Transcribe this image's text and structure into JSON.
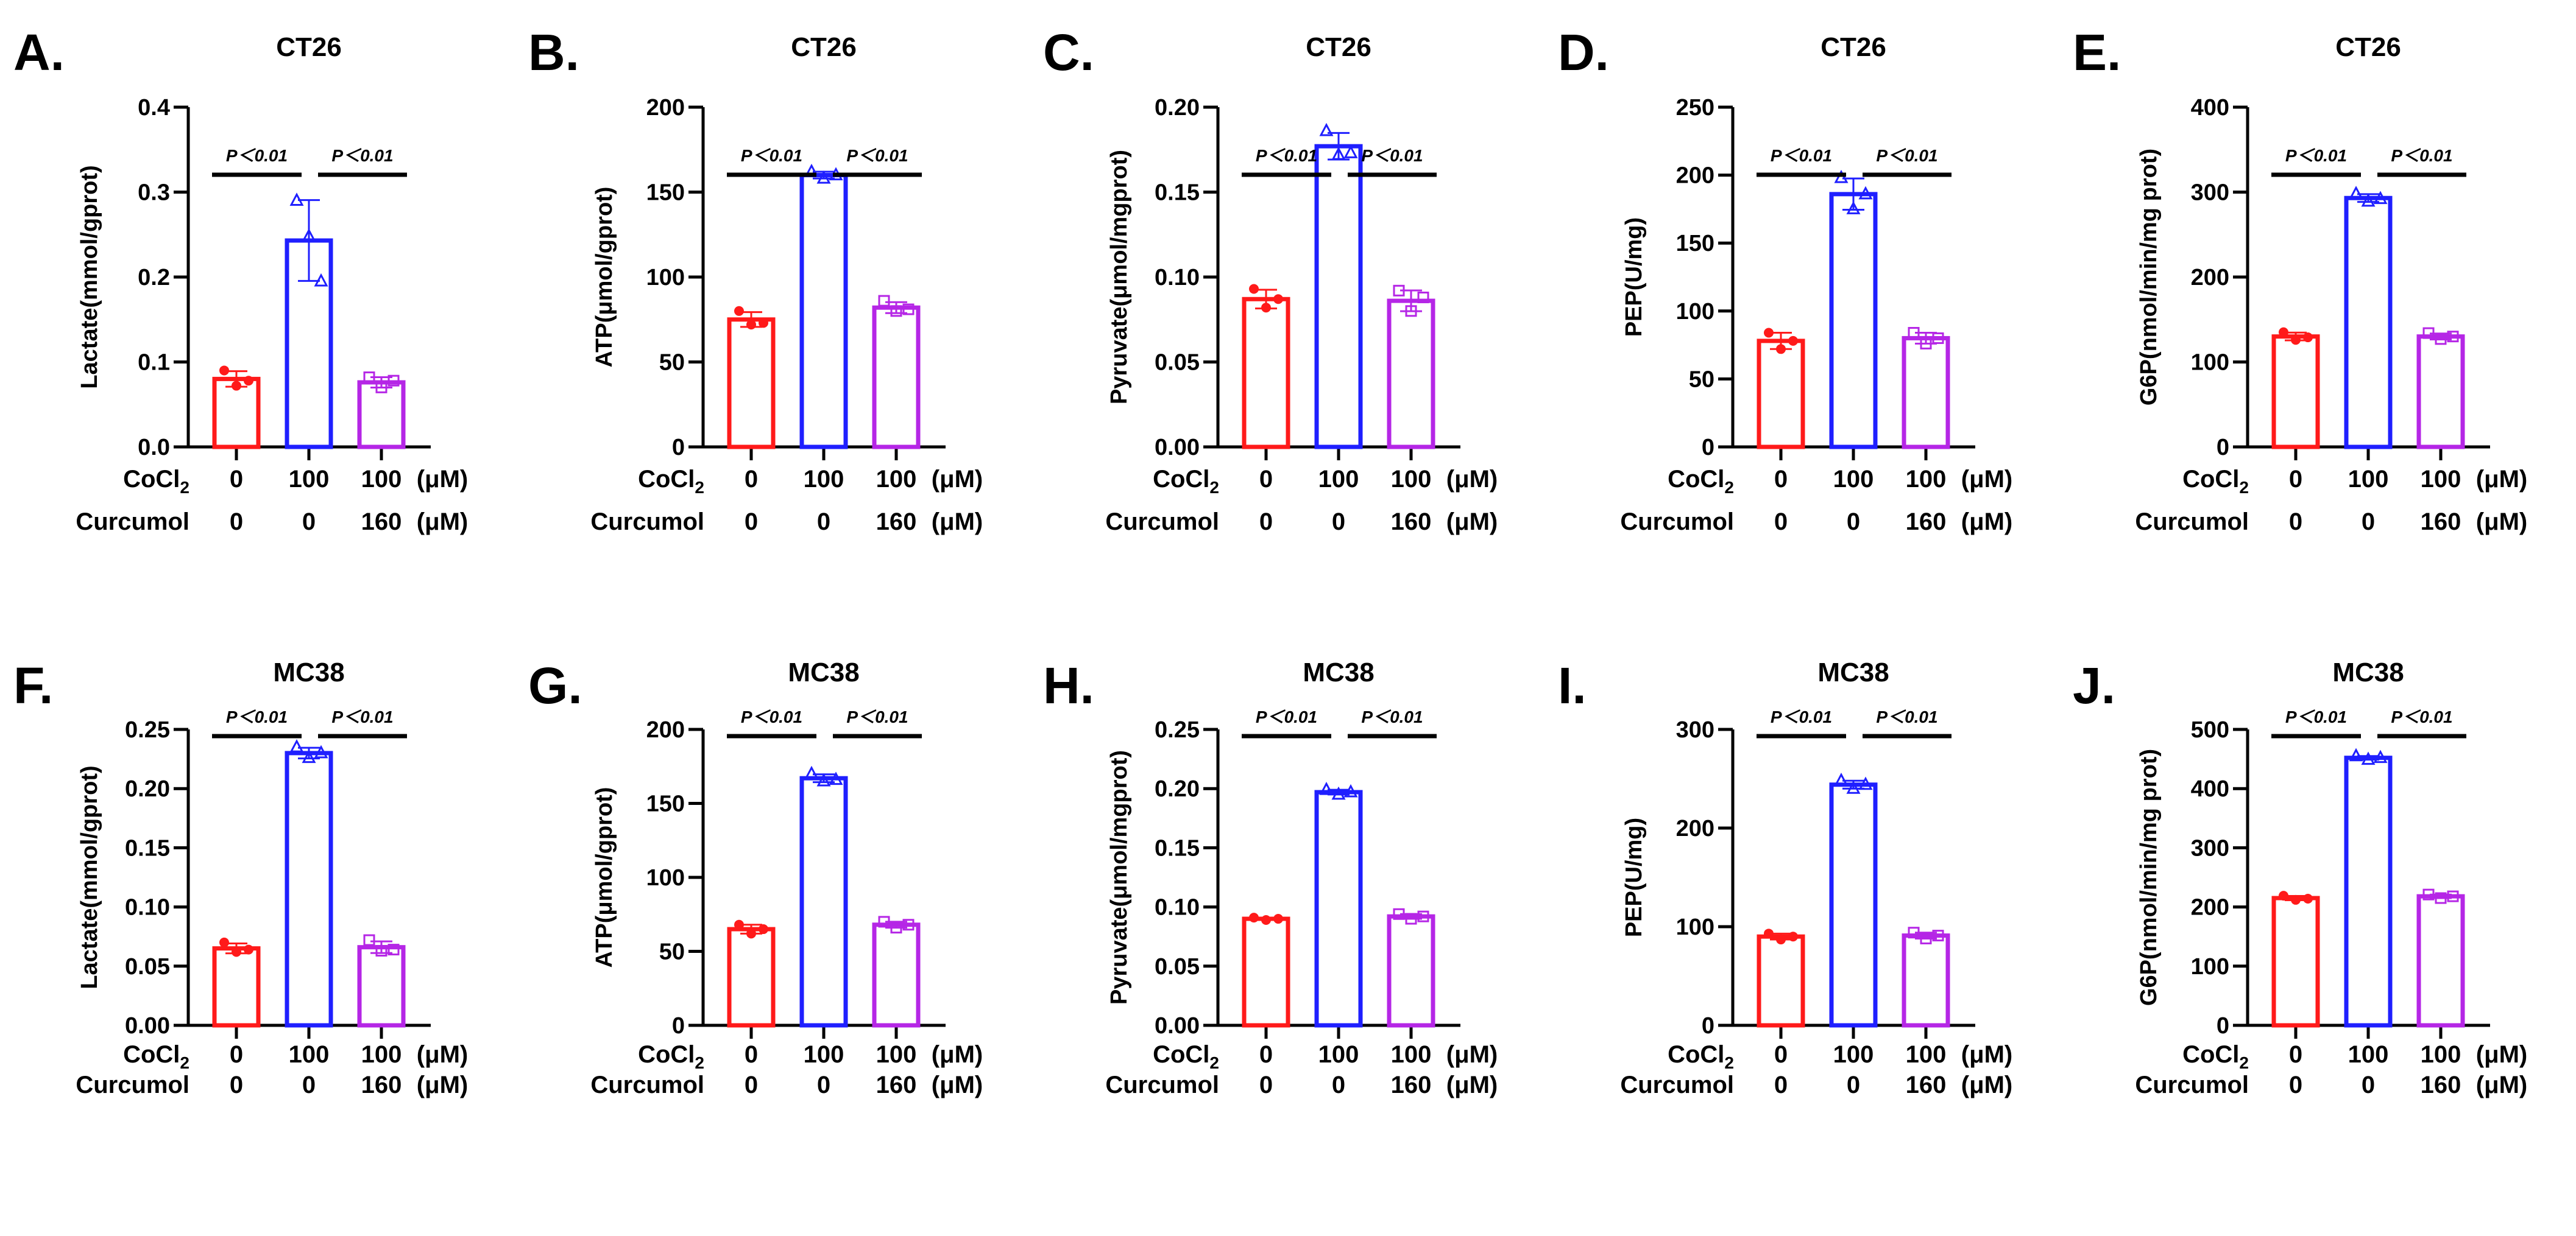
{
  "chart_data": [
    {
      "type": "bar",
      "panel": "A.",
      "title": "CT26",
      "ylabel": "Lactate(mmol/gprot)",
      "ylim": [
        0,
        0.4
      ],
      "yticks": [
        0,
        0.1,
        0.2,
        0.3,
        0.4
      ],
      "ytick_labels": [
        "0.0",
        "0.1",
        "0.2",
        "0.3",
        "0.4"
      ],
      "means": [
        0.08,
        0.243,
        0.076
      ],
      "points": [
        [
          0.09,
          0.072,
          0.078
        ],
        [
          0.29,
          0.248,
          0.195
        ],
        [
          0.082,
          0.07,
          0.078
        ]
      ]
    },
    {
      "type": "bar",
      "panel": "B.",
      "title": "CT26",
      "ylabel": "ATP(μmol/gprot)",
      "ylim": [
        0,
        200
      ],
      "yticks": [
        0,
        50,
        100,
        150,
        200
      ],
      "ytick_labels": [
        "0",
        "50",
        "100",
        "150",
        "200"
      ],
      "means": [
        75,
        160,
        82
      ],
      "points": [
        [
          80,
          72,
          73
        ],
        [
          162,
          158,
          160
        ],
        [
          86,
          80,
          81
        ]
      ]
    },
    {
      "type": "bar",
      "panel": "C.",
      "title": "CT26",
      "ylabel": "Pyruvate(μmol/mgprot)",
      "ylim": [
        0,
        0.2
      ],
      "yticks": [
        0,
        0.05,
        0.1,
        0.15,
        0.2
      ],
      "ytick_labels": [
        "0.00",
        "0.05",
        "0.10",
        "0.15",
        "0.20"
      ],
      "means": [
        0.087,
        0.177,
        0.086
      ],
      "points": [
        [
          0.093,
          0.082,
          0.087
        ],
        [
          0.186,
          0.172,
          0.173
        ],
        [
          0.092,
          0.08,
          0.088
        ]
      ]
    },
    {
      "type": "bar",
      "panel": "D.",
      "title": "CT26",
      "ylabel": "PEP(U/mg)",
      "ylim": [
        0,
        250
      ],
      "yticks": [
        0,
        50,
        100,
        150,
        200,
        250
      ],
      "ytick_labels": [
        "0",
        "50",
        "100",
        "150",
        "200",
        "250"
      ],
      "means": [
        78,
        186,
        80
      ],
      "points": [
        [
          84,
          72,
          78
        ],
        [
          198,
          175,
          186
        ],
        [
          84,
          76,
          80
        ]
      ]
    },
    {
      "type": "bar",
      "panel": "E.",
      "title": "CT26",
      "ylabel": "G6P(nmol/min/mg prot)",
      "ylim": [
        0,
        400
      ],
      "yticks": [
        0,
        100,
        200,
        300,
        400
      ],
      "ytick_labels": [
        "0",
        "100",
        "200",
        "300",
        "400"
      ],
      "means": [
        130,
        293,
        130
      ],
      "points": [
        [
          135,
          126,
          129
        ],
        [
          298,
          289,
          292
        ],
        [
          134,
          127,
          130
        ]
      ]
    },
    {
      "type": "bar",
      "panel": "F.",
      "title": "MC38",
      "ylabel": "Lactate(mmol/gprot)",
      "ylim": [
        0,
        0.25
      ],
      "yticks": [
        0,
        0.05,
        0.1,
        0.15,
        0.2,
        0.25
      ],
      "ytick_labels": [
        "0.00",
        "0.05",
        "0.10",
        "0.15",
        "0.20",
        "0.25"
      ],
      "means": [
        0.065,
        0.23,
        0.066
      ],
      "points": [
        [
          0.07,
          0.062,
          0.064
        ],
        [
          0.235,
          0.226,
          0.23
        ],
        [
          0.072,
          0.063,
          0.064
        ]
      ]
    },
    {
      "type": "bar",
      "panel": "G.",
      "title": "MC38",
      "ylabel": "ATP(μmol/gprot)",
      "ylim": [
        0,
        200
      ],
      "yticks": [
        0,
        50,
        100,
        150,
        200
      ],
      "ytick_labels": [
        "0",
        "50",
        "100",
        "150",
        "200"
      ],
      "means": [
        65,
        167,
        68
      ],
      "points": [
        [
          68,
          62,
          65
        ],
        [
          170,
          165,
          166
        ],
        [
          70,
          66,
          68
        ]
      ]
    },
    {
      "type": "bar",
      "panel": "H.",
      "title": "MC38",
      "ylabel": "Pyruvate(μmol/mgprot)",
      "ylim": [
        0,
        0.25
      ],
      "yticks": [
        0,
        0.05,
        0.1,
        0.15,
        0.2,
        0.25
      ],
      "ytick_labels": [
        "0.00",
        "0.05",
        "0.10",
        "0.15",
        "0.20",
        "0.25"
      ],
      "means": [
        0.09,
        0.197,
        0.092
      ],
      "points": [
        [
          0.091,
          0.089,
          0.09
        ],
        [
          0.199,
          0.195,
          0.197
        ],
        [
          0.094,
          0.09,
          0.092
        ]
      ]
    },
    {
      "type": "bar",
      "panel": "I.",
      "title": "MC38",
      "ylabel": "PEP(U/mg)",
      "ylim": [
        0,
        300
      ],
      "yticks": [
        0,
        100,
        200,
        300
      ],
      "ytick_labels": [
        "0",
        "100",
        "200",
        "300"
      ],
      "means": [
        90,
        244,
        91
      ],
      "points": [
        [
          93,
          87,
          90
        ],
        [
          248,
          240,
          244
        ],
        [
          94,
          88,
          91
        ]
      ]
    },
    {
      "type": "bar",
      "panel": "J.",
      "title": "MC38",
      "ylabel": "G6P(nmol/min/mg prot)",
      "ylim": [
        0,
        500
      ],
      "yticks": [
        0,
        100,
        200,
        300,
        400,
        500
      ],
      "ytick_labels": [
        "0",
        "100",
        "200",
        "300",
        "400",
        "500"
      ],
      "means": [
        215,
        452,
        218
      ],
      "points": [
        [
          219,
          212,
          214
        ],
        [
          455,
          449,
          452
        ],
        [
          221,
          215,
          218
        ]
      ]
    }
  ],
  "groups": {
    "colors": [
      "#ff1a1a",
      "#1f1fff",
      "#b526e6"
    ],
    "markers": [
      "circle",
      "triangle",
      "square"
    ],
    "row1": {
      "label_main": "CoCl",
      "label_sub": "2",
      "values": [
        "0",
        "100",
        "100"
      ],
      "unit": "(μM)"
    },
    "row2": {
      "label_main": "Curcumol",
      "values": [
        "0",
        "0",
        "160"
      ],
      "unit": "(μM)"
    }
  },
  "significance": [
    "P＜0.01",
    "P＜0.01"
  ]
}
